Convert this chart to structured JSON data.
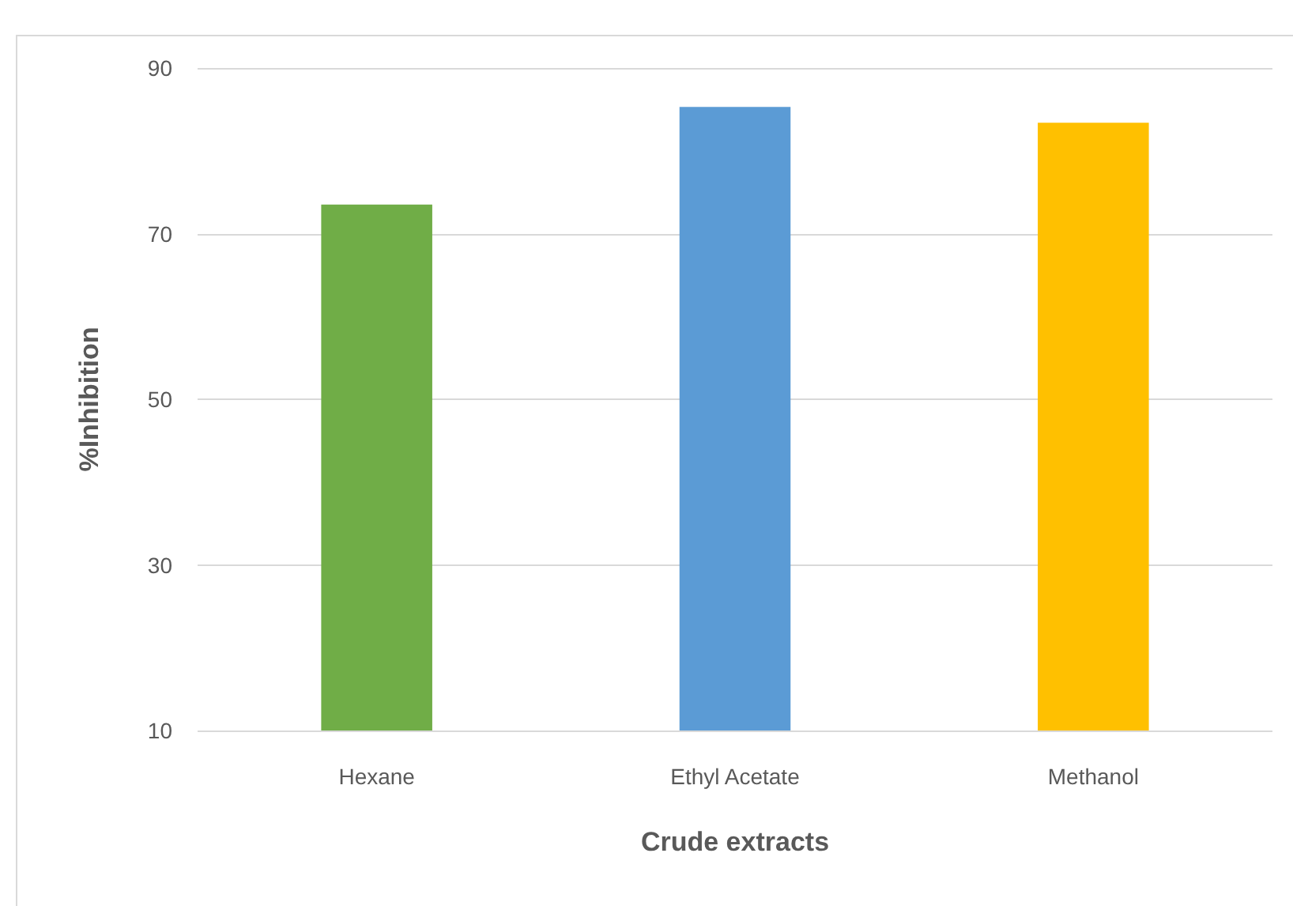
{
  "chart_data": {
    "type": "bar",
    "xlabel": "Crude extracts",
    "ylabel": "%Inhibition",
    "categories": [
      "Hexane",
      "Ethyl Acetate",
      "Methanol"
    ],
    "values": [
      73.5,
      85.3,
      83.4
    ],
    "colors": [
      "#70ad47",
      "#5b9bd5",
      "#ffc000"
    ],
    "ylim": [
      10,
      90
    ],
    "yticks": [
      10,
      30,
      50,
      70,
      90
    ],
    "grid": "y"
  }
}
